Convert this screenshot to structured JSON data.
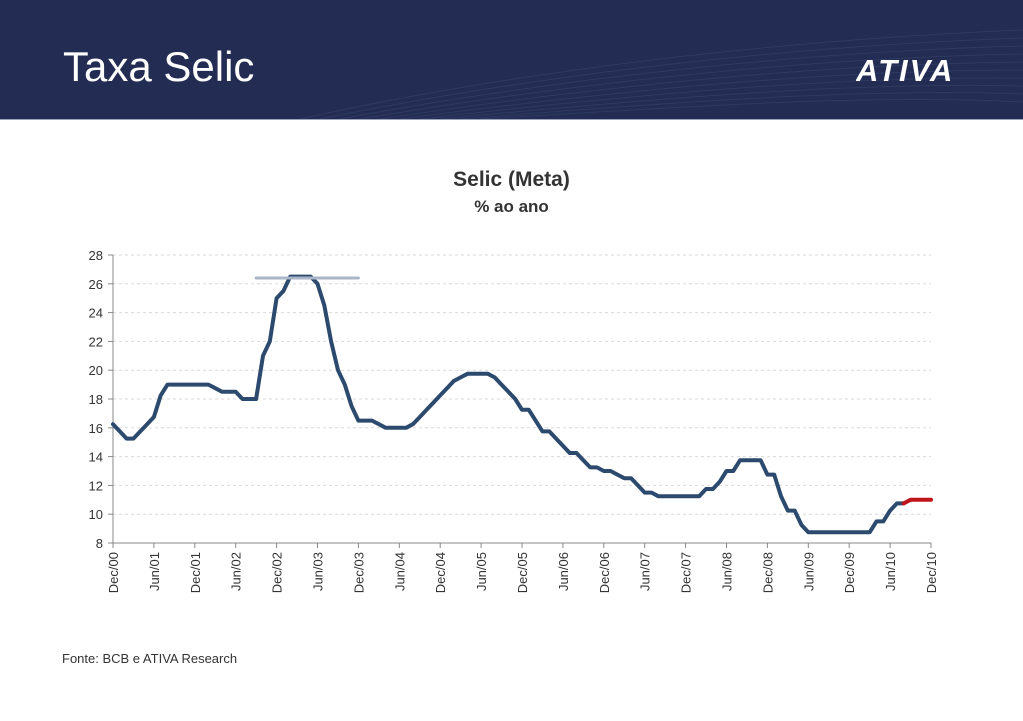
{
  "header": {
    "title": "Taxa Selic",
    "logo_text": "ATIVA",
    "background": "#232c52"
  },
  "source": "Fonte: BCB e ATIVA Research",
  "chart_data": {
    "type": "line",
    "title": "Selic (Meta)",
    "subtitle": "% ao ano",
    "xlabel": "",
    "ylabel": "",
    "ylim": [
      8,
      28
    ],
    "yticks": [
      8,
      10,
      12,
      14,
      16,
      18,
      20,
      22,
      24,
      26,
      28
    ],
    "grid": true,
    "xticks": [
      "Dec/00",
      "Jun/01",
      "Dec/01",
      "Jun/02",
      "Dec/02",
      "Jun/03",
      "Dec/03",
      "Jun/04",
      "Dec/04",
      "Jun/05",
      "Dec/05",
      "Jun/06",
      "Dec/06",
      "Jun/07",
      "Dec/07",
      "Jun/08",
      "Dec/08",
      "Jun/09",
      "Dec/09",
      "Jun/10",
      "Dec/10"
    ],
    "colors": {
      "actual": "#2c4a6e",
      "forecast": "#c0141c",
      "reference": "#aab5c8"
    },
    "series": [
      {
        "key": "actual",
        "x": [
          "2000-12",
          "2001-01",
          "2001-02",
          "2001-03",
          "2001-04",
          "2001-05",
          "2001-06",
          "2001-07",
          "2001-08",
          "2001-09",
          "2001-10",
          "2001-11",
          "2001-12",
          "2002-01",
          "2002-02",
          "2002-03",
          "2002-04",
          "2002-05",
          "2002-06",
          "2002-07",
          "2002-08",
          "2002-09",
          "2002-10",
          "2002-11",
          "2002-12",
          "2003-01",
          "2003-02",
          "2003-03",
          "2003-04",
          "2003-05",
          "2003-06",
          "2003-07",
          "2003-08",
          "2003-09",
          "2003-10",
          "2003-11",
          "2003-12",
          "2004-01",
          "2004-02",
          "2004-03",
          "2004-04",
          "2004-05",
          "2004-06",
          "2004-07",
          "2004-08",
          "2004-09",
          "2004-10",
          "2004-11",
          "2004-12",
          "2005-01",
          "2005-02",
          "2005-03",
          "2005-04",
          "2005-05",
          "2005-06",
          "2005-07",
          "2005-08",
          "2005-09",
          "2005-10",
          "2005-11",
          "2005-12",
          "2006-01",
          "2006-02",
          "2006-03",
          "2006-04",
          "2006-05",
          "2006-06",
          "2006-07",
          "2006-08",
          "2006-09",
          "2006-10",
          "2006-11",
          "2006-12",
          "2007-01",
          "2007-02",
          "2007-03",
          "2007-04",
          "2007-05",
          "2007-06",
          "2007-07",
          "2007-08",
          "2007-09",
          "2007-10",
          "2007-11",
          "2007-12",
          "2008-01",
          "2008-02",
          "2008-03",
          "2008-04",
          "2008-05",
          "2008-06",
          "2008-07",
          "2008-08",
          "2008-09",
          "2008-10",
          "2008-11",
          "2008-12",
          "2009-01",
          "2009-02",
          "2009-03",
          "2009-04",
          "2009-05",
          "2009-06",
          "2009-07",
          "2009-08",
          "2009-09",
          "2009-10",
          "2009-11",
          "2009-12",
          "2010-01",
          "2010-02",
          "2010-03",
          "2010-04",
          "2010-05",
          "2010-06",
          "2010-07",
          "2010-08"
        ],
        "values": [
          16.25,
          15.75,
          15.25,
          15.25,
          15.75,
          16.25,
          16.75,
          18.25,
          19.0,
          19.0,
          19.0,
          19.0,
          19.0,
          19.0,
          19.0,
          18.75,
          18.5,
          18.5,
          18.5,
          18.0,
          18.0,
          18.0,
          21.0,
          22.0,
          25.0,
          25.5,
          26.5,
          26.5,
          26.5,
          26.5,
          26.0,
          24.5,
          22.0,
          20.0,
          19.0,
          17.5,
          16.5,
          16.5,
          16.5,
          16.25,
          16.0,
          16.0,
          16.0,
          16.0,
          16.25,
          16.75,
          17.25,
          17.75,
          18.25,
          18.75,
          19.25,
          19.5,
          19.75,
          19.75,
          19.75,
          19.75,
          19.5,
          19.0,
          18.5,
          18.0,
          17.25,
          17.25,
          16.5,
          15.75,
          15.75,
          15.25,
          14.75,
          14.25,
          14.25,
          13.75,
          13.25,
          13.25,
          13.0,
          13.0,
          12.75,
          12.5,
          12.5,
          12.0,
          11.5,
          11.5,
          11.25,
          11.25,
          11.25,
          11.25,
          11.25,
          11.25,
          11.25,
          11.75,
          11.75,
          12.25,
          13.0,
          13.0,
          13.75,
          13.75,
          13.75,
          13.75,
          12.75,
          12.75,
          11.25,
          10.25,
          10.25,
          9.25,
          8.75,
          8.75,
          8.75,
          8.75,
          8.75,
          8.75,
          8.75,
          8.75,
          8.75,
          8.75,
          9.5,
          9.5,
          10.25,
          10.75,
          10.75
        ]
      },
      {
        "key": "forecast",
        "x": [
          "2010-08",
          "2010-09",
          "2010-10",
          "2010-11",
          "2010-12"
        ],
        "values": [
          10.75,
          11.0,
          11.0,
          11.0,
          11.0
        ]
      },
      {
        "key": "reference",
        "x": [
          "2002-09",
          "2003-12"
        ],
        "values": [
          26.4,
          26.4
        ]
      }
    ]
  }
}
